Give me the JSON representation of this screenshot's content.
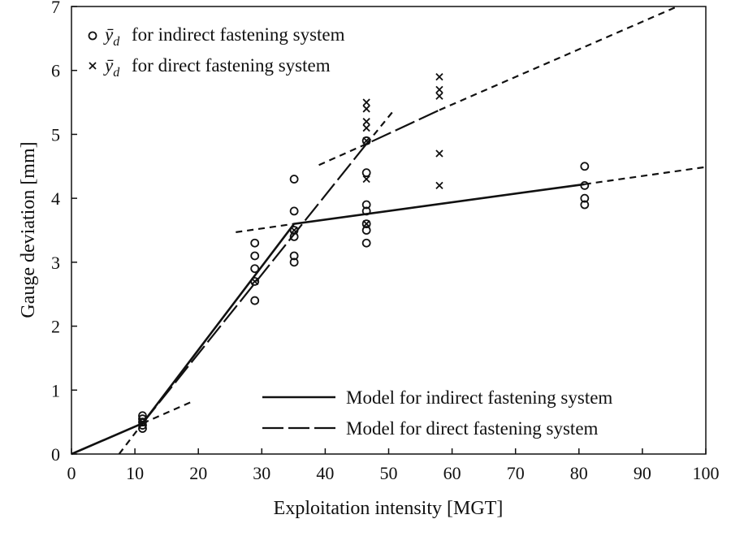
{
  "chart_data": {
    "type": "scatter",
    "xlabel": "Exploitation intensity [MGT]",
    "ylabel": "Gauge deviation [mm]",
    "xlim": [
      0,
      100
    ],
    "ylim": [
      0,
      7
    ],
    "xticks": [
      "0",
      "10",
      "20",
      "30",
      "40",
      "50",
      "60",
      "70",
      "80",
      "90",
      "100"
    ],
    "yticks": [
      "0",
      "1",
      "2",
      "3",
      "4",
      "5",
      "6",
      "7"
    ],
    "grid": false,
    "legend_scatter": {
      "placement": "top-left",
      "symbol": "ȳ",
      "subscript": "d",
      "entries": [
        {
          "marker": "circle",
          "text": "for indirect fastening system"
        },
        {
          "marker": "cross",
          "text": "for direct fastening system"
        }
      ]
    },
    "legend_lines": {
      "placement": "bottom-right",
      "entries": [
        {
          "style": "solid",
          "label": "Model for indirect fastening system"
        },
        {
          "style": "dashed",
          "label": "Model for direct fastening system"
        }
      ]
    },
    "series": [
      {
        "marker": "circle",
        "points": [
          [
            11.2,
            0.6
          ],
          [
            11.2,
            0.55
          ],
          [
            11.2,
            0.5
          ],
          [
            11.2,
            0.45
          ],
          [
            11.2,
            0.4
          ],
          [
            28.9,
            3.3
          ],
          [
            28.9,
            3.1
          ],
          [
            28.9,
            2.9
          ],
          [
            28.9,
            2.7
          ],
          [
            28.9,
            2.4
          ],
          [
            35.1,
            4.3
          ],
          [
            35.1,
            3.8
          ],
          [
            35.1,
            3.5
          ],
          [
            35.1,
            3.4
          ],
          [
            35.1,
            3.1
          ],
          [
            35.1,
            3.0
          ],
          [
            46.5,
            4.9
          ],
          [
            46.5,
            4.4
          ],
          [
            46.5,
            3.9
          ],
          [
            46.5,
            3.8
          ],
          [
            46.5,
            3.6
          ],
          [
            46.5,
            3.5
          ],
          [
            46.5,
            3.3
          ],
          [
            80.9,
            4.5
          ],
          [
            80.9,
            4.2
          ],
          [
            80.9,
            4.0
          ],
          [
            80.9,
            3.9
          ]
        ]
      },
      {
        "marker": "cross",
        "points": [
          [
            11.2,
            0.5
          ],
          [
            28.9,
            2.7
          ],
          [
            35.1,
            3.5
          ],
          [
            46.5,
            5.5
          ],
          [
            46.5,
            5.4
          ],
          [
            46.5,
            5.2
          ],
          [
            46.5,
            5.1
          ],
          [
            46.5,
            4.9
          ],
          [
            46.5,
            4.3
          ],
          [
            46.5,
            3.6
          ],
          [
            58.0,
            5.9
          ],
          [
            58.0,
            5.7
          ],
          [
            58.0,
            5.6
          ],
          [
            58.0,
            4.7
          ],
          [
            58.0,
            4.2
          ]
        ]
      }
    ],
    "model_lines": [
      {
        "model": "indirect",
        "style": "solid",
        "points": [
          [
            0,
            0
          ],
          [
            11.2,
            0.48
          ],
          [
            35.1,
            3.6
          ],
          [
            80.9,
            4.22
          ]
        ]
      },
      {
        "model": "direct",
        "style": "dashed",
        "points": [
          [
            11.2,
            0.48
          ],
          [
            46.5,
            4.85
          ],
          [
            58.0,
            5.38
          ]
        ]
      }
    ],
    "extrapolation_lines": [
      {
        "style": "dotted",
        "points": [
          [
            11.2,
            0.48
          ],
          [
            19,
            0.82
          ]
        ]
      },
      {
        "style": "dotted",
        "points": [
          [
            7.5,
            0
          ],
          [
            11.2,
            0.48
          ]
        ]
      },
      {
        "style": "dotted",
        "points": [
          [
            25.9,
            3.47
          ],
          [
            35.1,
            3.6
          ]
        ]
      },
      {
        "style": "dotted",
        "points": [
          [
            80.9,
            4.22
          ],
          [
            100,
            4.49
          ]
        ]
      },
      {
        "style": "dotted",
        "points": [
          [
            46.5,
            4.85
          ],
          [
            50.6,
            5.35
          ]
        ]
      },
      {
        "style": "dotted",
        "points": [
          [
            39.0,
            4.52
          ],
          [
            46.5,
            4.85
          ]
        ]
      },
      {
        "style": "dotted",
        "points": [
          [
            58.0,
            5.38
          ],
          [
            95.5,
            7.0
          ]
        ]
      }
    ]
  }
}
